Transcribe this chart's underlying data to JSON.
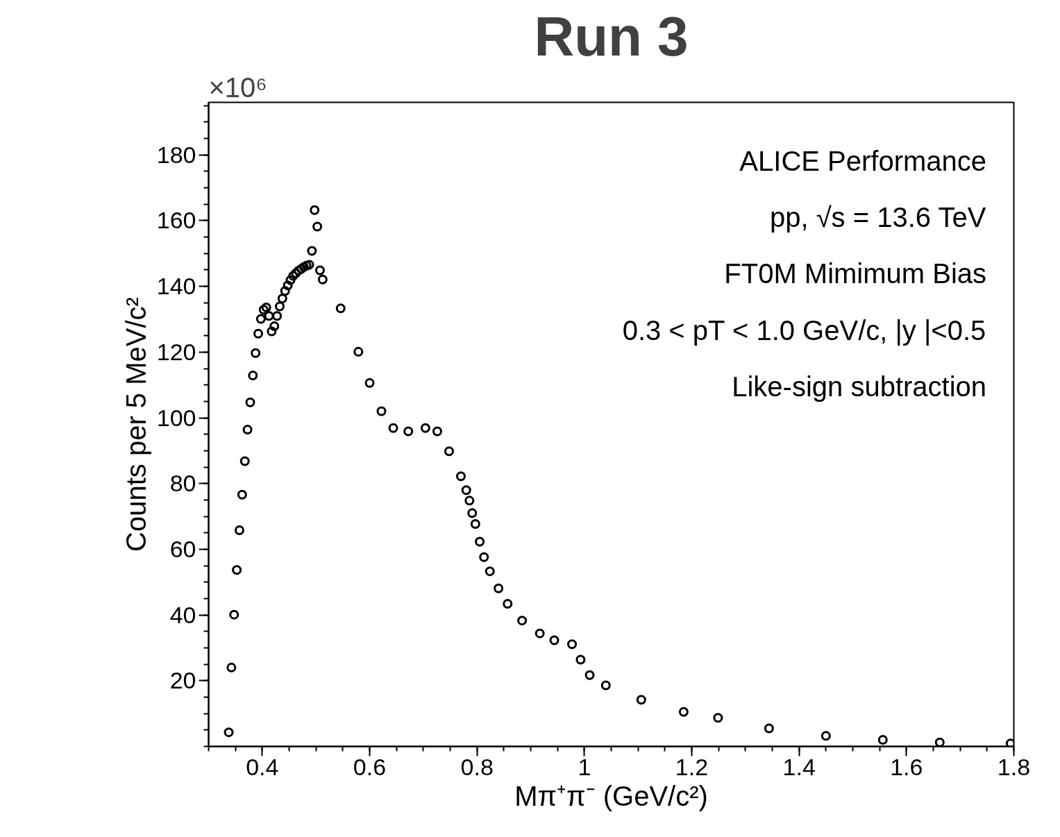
{
  "chart_data": {
    "type": "scatter",
    "title": "Run 3",
    "xlabel": "Mπ⁺π⁻ (GeV/c²)",
    "ylabel": "Counts per 5 MeV/c²",
    "annotations": [
      "×10⁶",
      "ALICE Performance",
      "pp, √s = 13.6 TeV",
      "FT0M Mimimum Bias",
      "0.3 < pT < 1.0 GeV/c, |y |<0.5",
      "Like-sign subtraction"
    ],
    "xlim": [
      0.3,
      1.8
    ],
    "ylim": [
      0,
      196
    ],
    "xticks": [
      0.4,
      0.6,
      0.8,
      1,
      1.2,
      1.4,
      1.6,
      1.8
    ],
    "yticks": [
      20,
      40,
      60,
      80,
      100,
      120,
      140,
      160,
      180
    ],
    "grid": false,
    "marker": "circle",
    "series": [
      {
        "color": "#000000",
        "x": [
          0.3375,
          0.3425,
          0.3475,
          0.3525,
          0.3575,
          0.3625,
          0.3675,
          0.3725,
          0.3775,
          0.3825,
          0.3875,
          0.3925,
          0.3975,
          0.4025,
          0.4075,
          0.4125,
          0.4175,
          0.4225,
          0.4275,
          0.4325,
          0.4375,
          0.4425,
          0.4475,
          0.4525,
          0.4575,
          0.4625,
          0.4675,
          0.4725,
          0.4775,
          0.4825,
          0.4875,
          0.4925,
          0.4975,
          0.5025,
          0.5075,
          0.5125,
          0.546,
          0.579,
          0.6,
          0.622,
          0.644,
          0.672,
          0.704,
          0.726,
          0.748,
          0.77,
          0.78,
          0.786,
          0.791,
          0.797,
          0.805,
          0.813,
          0.824,
          0.84,
          0.857,
          0.884,
          0.917,
          0.944,
          0.977,
          0.993,
          1.01,
          1.04,
          1.106,
          1.185,
          1.249,
          1.344,
          1.45,
          1.556,
          1.662,
          1.794
        ],
        "values": [
          4.3,
          24.0,
          40.1,
          53.7,
          65.8,
          76.6,
          86.8,
          96.4,
          104.7,
          112.9,
          119.7,
          125.6,
          130.1,
          132.9,
          133.6,
          131.0,
          126.3,
          127.9,
          131.0,
          133.9,
          136.3,
          138.6,
          140.3,
          141.9,
          143.2,
          144.0,
          144.8,
          145.3,
          145.9,
          146.3,
          146.6,
          150.8,
          163.2,
          158.2,
          144.9,
          142.1,
          133.3,
          120.1,
          110.6,
          102.0,
          96.9,
          95.9,
          96.9,
          95.9,
          89.8,
          82.2,
          78.0,
          74.8,
          71.0,
          67.7,
          62.3,
          57.6,
          53.3,
          48.1,
          43.4,
          38.3,
          34.4,
          32.3,
          31.1,
          26.4,
          21.7,
          18.6,
          14.2,
          10.5,
          8.7,
          5.5,
          3.2,
          2.0,
          1.2,
          0.9
        ]
      }
    ]
  }
}
